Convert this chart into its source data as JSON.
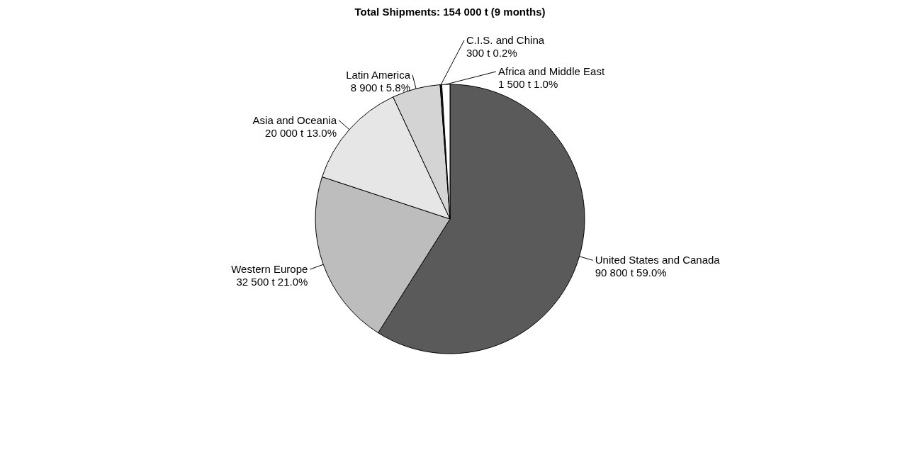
{
  "chart_data": {
    "type": "pie",
    "title": "Total Shipments:  154 000 t (9 months)",
    "categories": [
      "United States and Canada",
      "Western Europe",
      "Asia and Oceania",
      "Latin America",
      "C.I.S. and China",
      "Africa and Middle East"
    ],
    "values": [
      90800,
      32500,
      20000,
      8900,
      300,
      1500
    ],
    "value_labels": [
      "90 800 t  59.0%",
      "32 500 t  21.0%",
      "20 000 t  13.0%",
      "8 900 t  5.8%",
      "300 t  0.2%",
      "1 500 t  1.0%"
    ],
    "colors": [
      "#5a5a5a",
      "#bdbdbd",
      "#e6e6e6",
      "#d4d4d4",
      "#1a1a1a",
      "#ffffff"
    ],
    "legend": false
  }
}
